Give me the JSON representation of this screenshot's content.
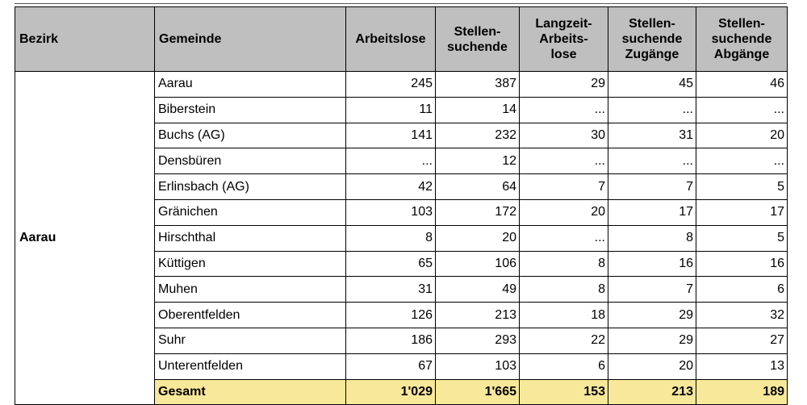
{
  "headers": [
    "Bezirk",
    "Gemeinde",
    "Arbeitslose",
    "Stellen-\nsuchende",
    "Langzeit-\nArbeits-\nlose",
    "Stellen-\nsuchende\nZugänge",
    "Stellen-\nsuchende\nAbgänge"
  ],
  "bezirk": "Aarau",
  "rows": [
    {
      "gemeinde": "Aarau",
      "values": [
        "245",
        "387",
        "29",
        "45",
        "46"
      ]
    },
    {
      "gemeinde": "Biberstein",
      "values": [
        "11",
        "14",
        "...",
        "...",
        "..."
      ]
    },
    {
      "gemeinde": "Buchs (AG)",
      "values": [
        "141",
        "232",
        "30",
        "31",
        "20"
      ]
    },
    {
      "gemeinde": "Densbüren",
      "values": [
        "...",
        "12",
        "...",
        "...",
        "..."
      ]
    },
    {
      "gemeinde": "Erlinsbach (AG)",
      "values": [
        "42",
        "64",
        "7",
        "7",
        "5"
      ]
    },
    {
      "gemeinde": "Gränichen",
      "values": [
        "103",
        "172",
        "20",
        "17",
        "17"
      ]
    },
    {
      "gemeinde": "Hirschthal",
      "values": [
        "8",
        "20",
        "...",
        "8",
        "5"
      ]
    },
    {
      "gemeinde": "Küttigen",
      "values": [
        "65",
        "106",
        "8",
        "16",
        "16"
      ]
    },
    {
      "gemeinde": "Muhen",
      "values": [
        "31",
        "49",
        "8",
        "7",
        "6"
      ]
    },
    {
      "gemeinde": "Oberentfelden",
      "values": [
        "126",
        "213",
        "18",
        "29",
        "32"
      ]
    },
    {
      "gemeinde": "Suhr",
      "values": [
        "186",
        "293",
        "22",
        "29",
        "27"
      ]
    },
    {
      "gemeinde": "Unterentfelden",
      "values": [
        "67",
        "103",
        "6",
        "20",
        "13"
      ]
    }
  ],
  "total": {
    "label": "Gesamt",
    "values": [
      "1'029",
      "1'665",
      "153",
      "213",
      "189"
    ]
  },
  "colors": {
    "header_bg": "#bfbfbf",
    "total_bg": "#f8e89a"
  }
}
